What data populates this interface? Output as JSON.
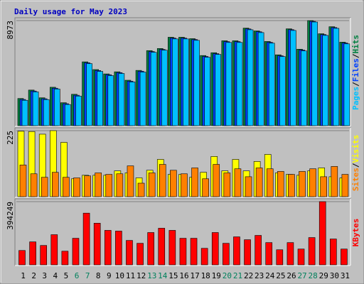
{
  "chart_data": [
    {
      "type": "bar",
      "title": "Daily usage for May 2023",
      "legend_separator": "/",
      "ylim": [
        0,
        8973
      ],
      "yticks": [
        8973
      ],
      "series": [
        {
          "name": "Hits",
          "color": "#008040",
          "values": [
            2320,
            3040,
            2380,
            3280,
            1960,
            2680,
            5450,
            4790,
            4420,
            4600,
            3880,
            4720,
            6410,
            6590,
            7550,
            7550,
            7430,
            5990,
            6230,
            7250,
            7250,
            8330,
            8090,
            7190,
            6050,
            8270,
            6530,
            8973,
            7850,
            8450,
            7130
          ]
        },
        {
          "name": "Files",
          "color": "#0040ff",
          "values": [
            2240,
            2960,
            2300,
            3200,
            1880,
            2600,
            5370,
            4710,
            4350,
            4530,
            3800,
            4650,
            6330,
            6510,
            7480,
            7480,
            7360,
            5910,
            6150,
            7180,
            7180,
            8260,
            8020,
            7120,
            5970,
            8200,
            6460,
            8910,
            7780,
            8380,
            7060
          ]
        },
        {
          "name": "Pages",
          "color": "#00c0ff",
          "values": [
            2168,
            2890,
            2228,
            3131,
            1807,
            2529,
            5300,
            4637,
            4276,
            4456,
            3734,
            4577,
            6263,
            6444,
            7407,
            7407,
            7287,
            5841,
            6082,
            7106,
            7106,
            8190,
            7949,
            7046,
            5902,
            8130,
            6383,
            8853,
            7708,
            8311,
            6986
          ]
        }
      ]
    },
    {
      "type": "bar",
      "legend_separator": "/",
      "ylim": [
        0,
        225
      ],
      "yticks": [
        225
      ],
      "series": [
        {
          "name": "Visits",
          "color": "#ffff00",
          "values": [
            223,
            222,
            213,
            225,
            185,
            61,
            73,
            73,
            73,
            88,
            81,
            64,
            90,
            127,
            76,
            76,
            66,
            83,
            137,
            88,
            127,
            88,
            120,
            144,
            81,
            76,
            73,
            88,
            98,
            68,
            64
          ]
        },
        {
          "name": "Sites",
          "color": "#ff8000",
          "values": [
            108,
            78,
            66,
            83,
            66,
            64,
            71,
            81,
            76,
            78,
            105,
            46,
            81,
            110,
            90,
            78,
            98,
            61,
            110,
            81,
            95,
            68,
            98,
            95,
            86,
            76,
            86,
            95,
            68,
            103,
            76
          ]
        }
      ]
    },
    {
      "type": "bar",
      "ylim": [
        0,
        394249
      ],
      "yticks": [
        394249
      ],
      "categories": [
        "1",
        "2",
        "3",
        "4",
        "5",
        "6",
        "7",
        "8",
        "9",
        "10",
        "11",
        "12",
        "13",
        "14",
        "15",
        "16",
        "17",
        "18",
        "19",
        "20",
        "21",
        "22",
        "23",
        "24",
        "25",
        "26",
        "27",
        "28",
        "29",
        "30",
        "31"
      ],
      "category_colors": [
        "#000000",
        "#000000",
        "#000000",
        "#000000",
        "#000000",
        "#00805c",
        "#00805c",
        "#000000",
        "#000000",
        "#000000",
        "#000000",
        "#000000",
        "#00805c",
        "#00805c",
        "#000000",
        "#000000",
        "#000000",
        "#000000",
        "#000000",
        "#00805c",
        "#00805c",
        "#000000",
        "#000000",
        "#000000",
        "#000000",
        "#000000",
        "#00805c",
        "#00805c",
        "#000000",
        "#000000",
        "#000000"
      ],
      "series": [
        {
          "name": "KBytes",
          "color": "#ff0000",
          "values": [
            89602,
            143363,
            120963,
            188165,
            85123,
            165764,
            322568,
            259846,
            215045,
            210565,
            152323,
            134403,
            201605,
            228486,
            215045,
            165764,
            165764,
            103042,
            201605,
            134403,
            174724,
            156803,
            183684,
            138883,
            94082,
            138883,
            98562,
            170244,
            394249,
            161284,
            98562
          ]
        }
      ]
    }
  ]
}
